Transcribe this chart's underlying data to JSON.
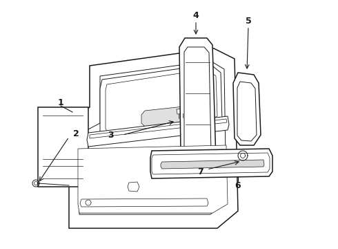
{
  "bg_color": "#ffffff",
  "line_color": "#1a1a1a",
  "figsize": [
    4.9,
    3.6
  ],
  "dpi": 100,
  "lw_main": 1.1,
  "lw_detail": 0.7,
  "lw_thin": 0.5
}
